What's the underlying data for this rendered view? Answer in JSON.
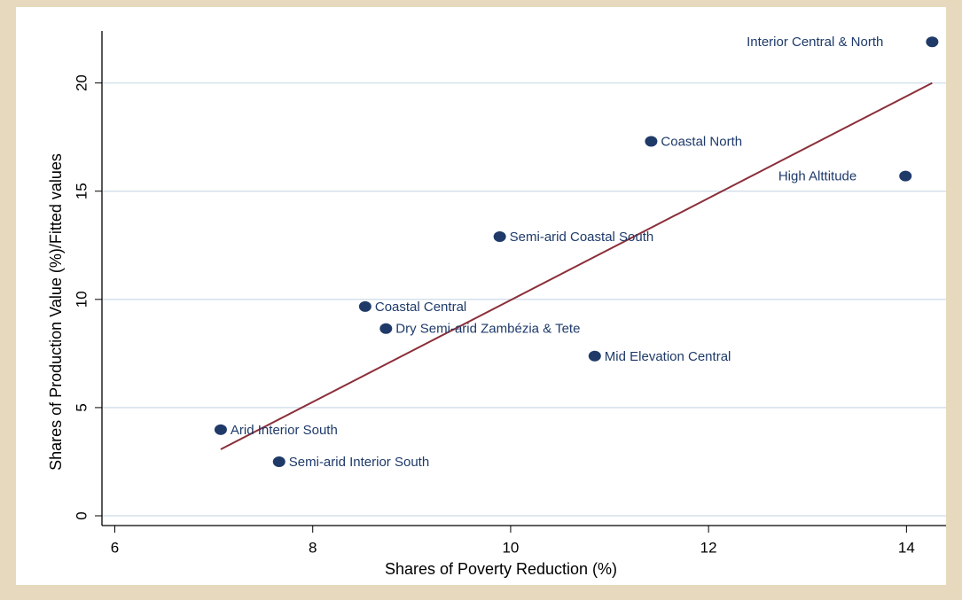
{
  "chart_data": {
    "type": "scatter",
    "x_label": "Shares of Poverty Reduction (%)",
    "y_label": "Shares of Production Value (%)/Fitted values",
    "x": [
      14.26,
      11.42,
      13.99,
      9.89,
      8.53,
      8.74,
      10.85,
      7.07,
      7.66
    ],
    "values": [
      21.9,
      17.3,
      15.7,
      12.9,
      9.67,
      8.65,
      7.38,
      3.98,
      2.5
    ],
    "labels": [
      "Interior Central & North",
      "Coastal North",
      "High Alttitude",
      "Semi-arid Coastal South",
      "Coastal Central",
      "Dry Semi-arid Zambézia & Tete",
      "Mid Elevation Central",
      "Arid Interior South",
      "Semi-arid Interior South"
    ],
    "label_position": [
      "left",
      "right",
      "left",
      "right",
      "right",
      "right",
      "right",
      "right",
      "right"
    ],
    "color": "#1f3a68",
    "fit": {
      "type": "line",
      "x": [
        7.07,
        14.26
      ],
      "values": [
        3.07,
        20.0
      ],
      "color": "#8b2f3a"
    },
    "xlim": [
      5.87,
      14.4
    ],
    "ylim": [
      -0.45,
      22.4
    ],
    "xticks": [
      6,
      8,
      10,
      12,
      14
    ],
    "yticks": [
      0,
      5,
      10,
      15,
      20
    ],
    "grid": true
  }
}
